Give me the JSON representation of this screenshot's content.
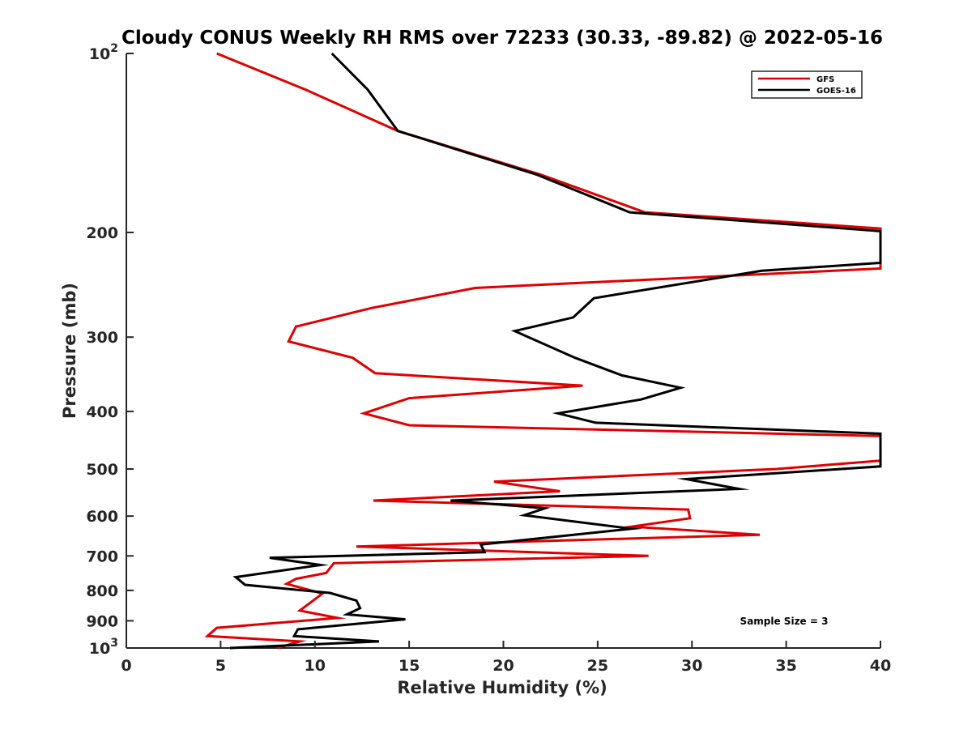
{
  "chart_data": {
    "type": "line",
    "title": "Cloudy CONUS Weekly RH RMS over 72233 (30.33, -89.82) @ 2022-05-16",
    "xlabel": "Relative Humidity (%)",
    "ylabel": "Pressure (mb)",
    "xlim": [
      0,
      40
    ],
    "ylim": [
      100,
      1000
    ],
    "yscale": "log",
    "yreversed": true,
    "grid": false,
    "legend_position": "top-right",
    "x_ticks": [
      0,
      5,
      10,
      15,
      20,
      25,
      30,
      35,
      40
    ],
    "x_tick_labels": [
      "0",
      "5",
      "10",
      "15",
      "20",
      "25",
      "30",
      "35",
      "40"
    ],
    "y_ticks": [
      100,
      200,
      300,
      400,
      500,
      600,
      700,
      800,
      900,
      1000
    ],
    "y_tick_labels": [
      {
        "base": "10",
        "exp": "2"
      },
      {
        "base": "200",
        "exp": ""
      },
      {
        "base": "300",
        "exp": ""
      },
      {
        "base": "400",
        "exp": ""
      },
      {
        "base": "500",
        "exp": ""
      },
      {
        "base": "600",
        "exp": ""
      },
      {
        "base": "700",
        "exp": ""
      },
      {
        "base": "800",
        "exp": ""
      },
      {
        "base": "900",
        "exp": ""
      },
      {
        "base": "10",
        "exp": "3"
      }
    ],
    "annotation": "Sample Size = 3",
    "series": [
      {
        "name": "GFS",
        "color": "#e00000",
        "points": [
          [
            4.8,
            100
          ],
          [
            9.5,
            115
          ],
          [
            14.4,
            135
          ],
          [
            22.0,
            160
          ],
          [
            27.5,
            185
          ],
          [
            40.0,
            197
          ],
          [
            40.0,
            230
          ],
          [
            18.5,
            248
          ],
          [
            13.0,
            268
          ],
          [
            9.0,
            288
          ],
          [
            8.6,
            305
          ],
          [
            12.0,
            325
          ],
          [
            13.2,
            345
          ],
          [
            24.2,
            362
          ],
          [
            15.0,
            380
          ],
          [
            12.6,
            403
          ],
          [
            15.0,
            422
          ],
          [
            40.0,
            440
          ],
          [
            40.0,
            484
          ],
          [
            34.5,
            500
          ],
          [
            19.5,
            525
          ],
          [
            23.0,
            545
          ],
          [
            13.1,
            565
          ],
          [
            29.8,
            585
          ],
          [
            29.9,
            605
          ],
          [
            26.8,
            625
          ],
          [
            33.6,
            645
          ],
          [
            12.2,
            675
          ],
          [
            27.7,
            700
          ],
          [
            11.0,
            720
          ],
          [
            10.6,
            748
          ],
          [
            9.0,
            765
          ],
          [
            8.5,
            780
          ],
          [
            10.4,
            810
          ],
          [
            9.2,
            865
          ],
          [
            11.2,
            890
          ],
          [
            4.8,
            925
          ],
          [
            4.3,
            955
          ],
          [
            9.2,
            975
          ],
          [
            8.0,
            1000
          ]
        ]
      },
      {
        "name": "GOES-16",
        "color": "#000000",
        "points": [
          [
            10.9,
            100
          ],
          [
            12.8,
            115
          ],
          [
            14.4,
            135
          ],
          [
            21.8,
            160
          ],
          [
            26.7,
            185
          ],
          [
            40.0,
            199
          ],
          [
            40.0,
            225
          ],
          [
            33.7,
            232
          ],
          [
            24.8,
            258
          ],
          [
            23.7,
            278
          ],
          [
            20.6,
            293
          ],
          [
            23.8,
            325
          ],
          [
            26.3,
            348
          ],
          [
            29.4,
            365
          ],
          [
            27.3,
            382
          ],
          [
            22.9,
            403
          ],
          [
            24.9,
            418
          ],
          [
            40.0,
            436
          ],
          [
            40.0,
            495
          ],
          [
            29.7,
            520
          ],
          [
            32.5,
            540
          ],
          [
            17.2,
            565
          ],
          [
            22.2,
            582
          ],
          [
            21.1,
            598
          ],
          [
            26.8,
            630
          ],
          [
            18.8,
            670
          ],
          [
            19.0,
            690
          ],
          [
            7.6,
            705
          ],
          [
            10.3,
            725
          ],
          [
            5.8,
            760
          ],
          [
            6.3,
            783
          ],
          [
            10.8,
            808
          ],
          [
            12.2,
            832
          ],
          [
            12.4,
            857
          ],
          [
            11.7,
            878
          ],
          [
            14.8,
            895
          ],
          [
            9.1,
            930
          ],
          [
            8.9,
            955
          ],
          [
            13.4,
            975
          ],
          [
            5.5,
            1000
          ]
        ]
      }
    ]
  }
}
